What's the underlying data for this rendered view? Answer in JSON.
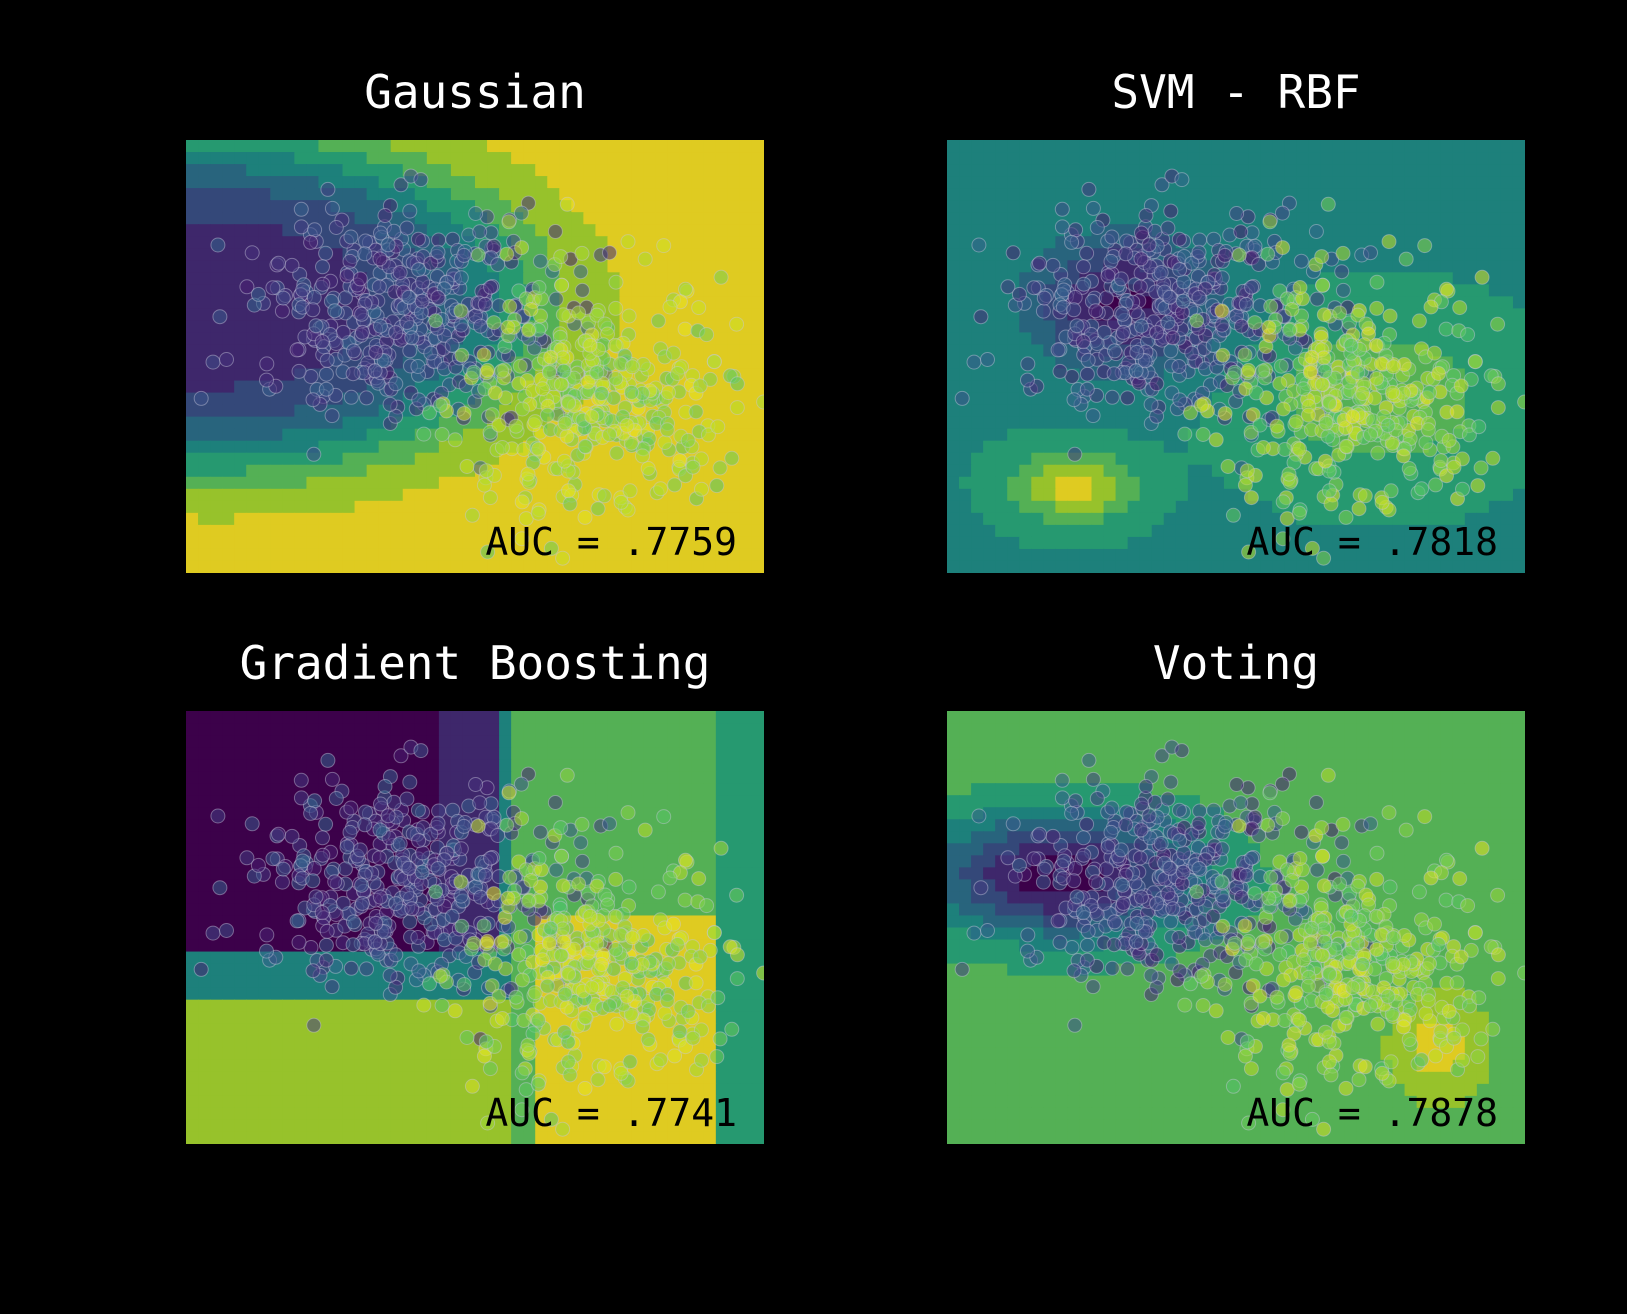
{
  "figure": {
    "background": "#000000",
    "colormap": "viridis"
  },
  "chart_data": [
    {
      "type": "scatter",
      "title": "Gaussian",
      "annotation": "AUC = .7759",
      "auc": 0.7759,
      "boundary": "gaussian",
      "grid": false,
      "legend": "none"
    },
    {
      "type": "scatter",
      "title": "SVM - RBF",
      "annotation": "AUC = .7818",
      "auc": 0.7818,
      "boundary": "svm-rbf",
      "grid": false,
      "legend": "none"
    },
    {
      "type": "scatter",
      "title": "Gradient Boosting",
      "annotation": "AUC = .7741",
      "auc": 0.7741,
      "boundary": "gradient-boosting",
      "grid": false,
      "legend": "none"
    },
    {
      "type": "scatter",
      "title": "Voting",
      "annotation": "AUC = .7878",
      "auc": 0.7878,
      "boundary": "voting",
      "grid": false,
      "legend": "none"
    }
  ]
}
